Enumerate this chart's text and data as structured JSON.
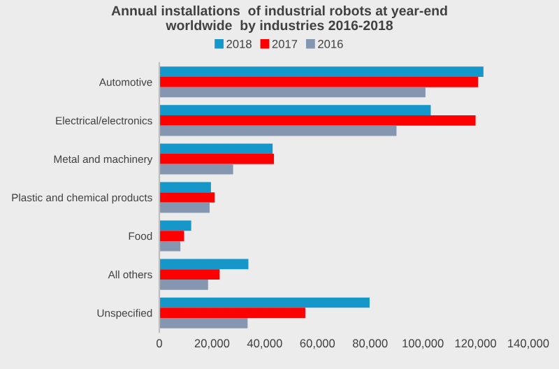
{
  "chart_data": {
    "type": "bar",
    "orientation": "horizontal",
    "title": "Annual installations  of industrial robots at year-end\nworldwide  by industries 2016-2018",
    "categories": [
      "Automotive",
      "Electrical/electronics",
      "Metal and machinery",
      "Plastic and chemical products",
      "Food",
      "All others",
      "Unspecified"
    ],
    "series": [
      {
        "name": "2018",
        "color": "#1597c9",
        "values": [
          123000,
          103000,
          43000,
          19600,
          12100,
          33800,
          79800
        ]
      },
      {
        "name": "2017",
        "color": "#ff0000",
        "values": [
          121000,
          120000,
          43500,
          21000,
          9400,
          22900,
          55400
        ]
      },
      {
        "name": "2016",
        "color": "#8496b0",
        "values": [
          101000,
          90000,
          28000,
          19100,
          8000,
          18500,
          33500
        ]
      }
    ],
    "xlim": [
      0,
      140000
    ],
    "xticks": [
      {
        "value": 0,
        "label": "0"
      },
      {
        "value": 20000,
        "label": "20,000"
      },
      {
        "value": 40000,
        "label": "40,000"
      },
      {
        "value": 60000,
        "label": "60,000"
      },
      {
        "value": 80000,
        "label": "80,000"
      },
      {
        "value": 100000,
        "label": "100,000"
      },
      {
        "value": 120000,
        "label": "120,000"
      },
      {
        "value": 140000,
        "label": "140,000"
      }
    ],
    "legend": "top",
    "grid": false
  }
}
